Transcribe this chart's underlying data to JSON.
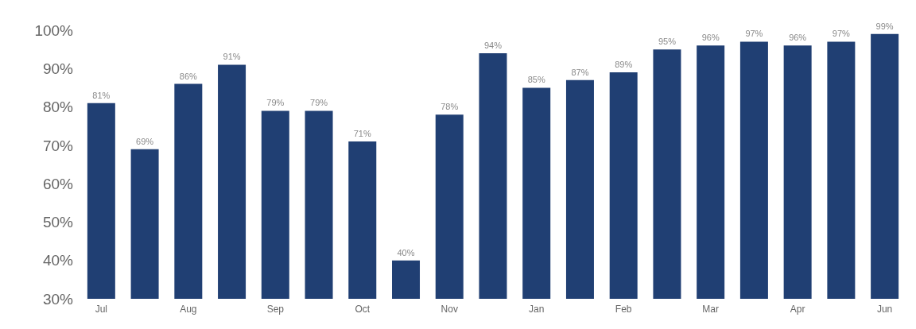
{
  "chart_data": {
    "type": "bar",
    "categories": [
      "Jul",
      null,
      "Aug",
      null,
      "Sep",
      null,
      "Oct",
      null,
      "Nov",
      null,
      "Jan",
      null,
      "Feb",
      null,
      "Mar",
      null,
      "Apr",
      null,
      "Jun"
    ],
    "values": [
      81,
      69,
      86,
      91,
      79,
      79,
      71,
      40,
      78,
      94,
      85,
      87,
      89,
      95,
      96,
      97,
      96,
      97,
      99
    ],
    "value_labels": [
      "81%",
      "69%",
      "86%",
      "91%",
      "79%",
      "79%",
      "71%",
      "40%",
      "78%",
      "94%",
      "85%",
      "87%",
      "89%",
      "95%",
      "96%",
      "97%",
      "96%",
      "97%",
      "99%"
    ],
    "color": "#203f73",
    "ylim": [
      30,
      100
    ],
    "yticks": [
      {
        "value": 30,
        "label": "30%"
      },
      {
        "value": 40,
        "label": "40%"
      },
      {
        "value": 50,
        "label": "50%"
      },
      {
        "value": 60,
        "label": "60%"
      },
      {
        "value": 70,
        "label": "70%"
      },
      {
        "value": 80,
        "label": "80%"
      },
      {
        "value": 90,
        "label": "90%"
      },
      {
        "value": 100,
        "label": "100%"
      }
    ],
    "grid": false,
    "legend": false
  }
}
